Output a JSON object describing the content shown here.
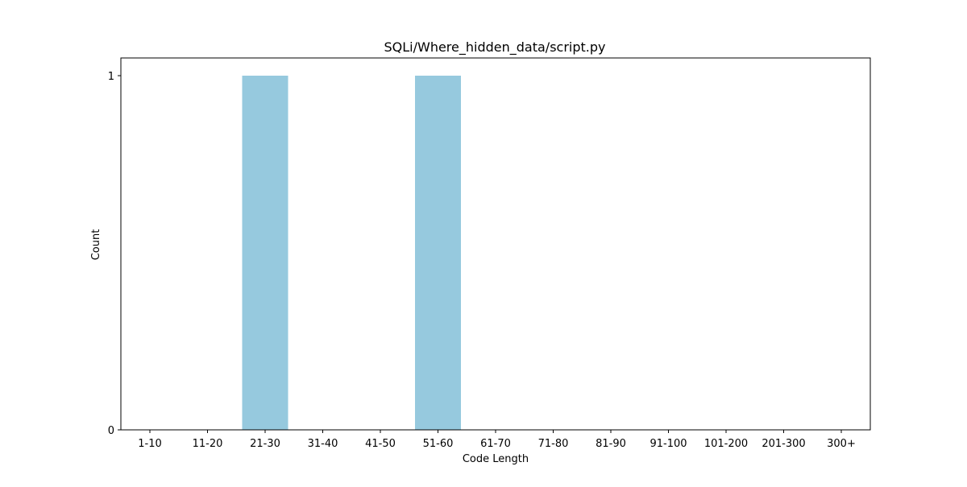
{
  "chart_data": {
    "type": "bar",
    "title": "SQLi/Where_hidden_data/script.py",
    "xlabel": "Code Length",
    "ylabel": "Count",
    "categories": [
      "1-10",
      "11-20",
      "21-30",
      "31-40",
      "41-50",
      "51-60",
      "61-70",
      "71-80",
      "81-90",
      "91-100",
      "101-200",
      "201-300",
      "300+"
    ],
    "values": [
      0,
      0,
      1,
      0,
      0,
      1,
      0,
      0,
      0,
      0,
      0,
      0,
      0
    ],
    "yticks": [
      "0",
      "1"
    ],
    "ylim": [
      0,
      1.05
    ],
    "grid": false,
    "bar_color": "#96c9de"
  }
}
